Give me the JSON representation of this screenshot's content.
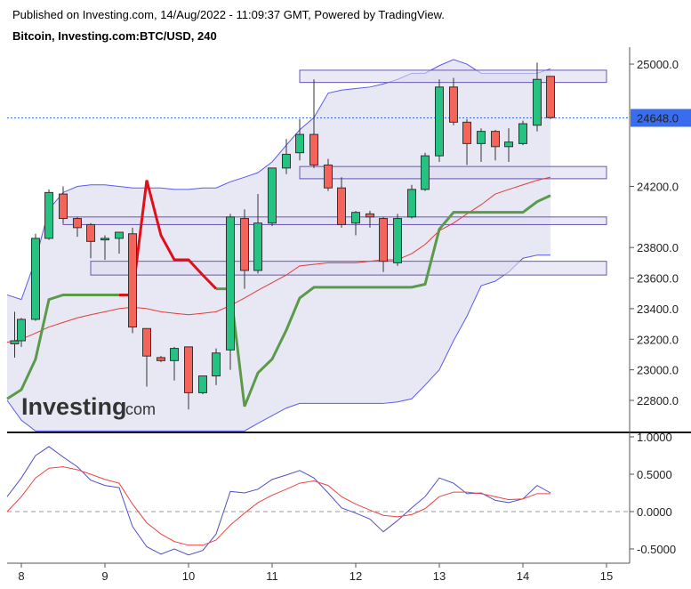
{
  "header": {
    "published": "Published on Investing.com, 14/Aug/2022 - 11:09:37 GMT, Powered by TradingView.",
    "symbol": "Bitcoin, Investing.com:BTC/USD, 240"
  },
  "logo": {
    "main": "Investing",
    "suffix": ".com"
  },
  "colors": {
    "up": "#26c281",
    "down": "#f5645a",
    "outline": "#333333",
    "band_fill": "#e4e4f2",
    "band_line": "#5a5aee",
    "zone_fill": "#dcdcf0",
    "zone_line": "#6a55b0",
    "ma_red": "#e33b3b",
    "ma_green": "#5a9a4a",
    "ma_hl_red": "#e0101a",
    "price_line": "#3a6cf0",
    "osc_blue": "#5050c8",
    "osc_red": "#ee4444"
  },
  "chart_data": [
    {
      "type": "candlestick",
      "title": "Bitcoin, Investing.com:BTC/USD, 240",
      "x_ticks": [
        "8",
        "9",
        "10",
        "11",
        "12",
        "13",
        "14",
        "15"
      ],
      "ylim": [
        22600,
        25100
      ],
      "y_ticks": [
        "22800.0",
        "23000.0",
        "23200.0",
        "23400.0",
        "23600.0",
        "23800.0",
        "24200.0",
        "25000.0"
      ],
      "last_price": "24648.0",
      "candles": [
        {
          "x": 7.92,
          "o": 23170,
          "h": 23380,
          "l": 23080,
          "c": 23190
        },
        {
          "x": 8.0,
          "o": 23190,
          "h": 23340,
          "l": 23150,
          "c": 23330
        },
        {
          "x": 8.17,
          "o": 23330,
          "h": 23890,
          "l": 23320,
          "c": 23860
        },
        {
          "x": 8.33,
          "o": 23860,
          "h": 24180,
          "l": 23850,
          "c": 24160
        },
        {
          "x": 8.5,
          "o": 24150,
          "h": 24200,
          "l": 23960,
          "c": 23990
        },
        {
          "x": 8.67,
          "o": 23990,
          "h": 24000,
          "l": 23870,
          "c": 23930
        },
        {
          "x": 8.83,
          "o": 23950,
          "h": 23960,
          "l": 23730,
          "c": 23840
        },
        {
          "x": 9.0,
          "o": 23850,
          "h": 23880,
          "l": 23720,
          "c": 23860
        },
        {
          "x": 9.17,
          "o": 23860,
          "h": 23900,
          "l": 23760,
          "c": 23900
        },
        {
          "x": 9.33,
          "o": 23890,
          "h": 23930,
          "l": 23240,
          "c": 23280
        },
        {
          "x": 9.5,
          "o": 23270,
          "h": 23270,
          "l": 22890,
          "c": 23090
        },
        {
          "x": 9.67,
          "o": 23080,
          "h": 23090,
          "l": 23050,
          "c": 23060
        },
        {
          "x": 9.83,
          "o": 23060,
          "h": 23150,
          "l": 22930,
          "c": 23140
        },
        {
          "x": 10.0,
          "o": 23150,
          "h": 23150,
          "l": 22740,
          "c": 22850
        },
        {
          "x": 10.17,
          "o": 22850,
          "h": 22960,
          "l": 22840,
          "c": 22960
        },
        {
          "x": 10.33,
          "o": 22960,
          "h": 23140,
          "l": 22900,
          "c": 23110
        },
        {
          "x": 10.5,
          "o": 23130,
          "h": 24020,
          "l": 23000,
          "c": 24000
        },
        {
          "x": 10.67,
          "o": 23990,
          "h": 24050,
          "l": 23530,
          "c": 23650
        },
        {
          "x": 10.83,
          "o": 23650,
          "h": 24150,
          "l": 23630,
          "c": 23960
        },
        {
          "x": 11.0,
          "o": 23960,
          "h": 24320,
          "l": 23940,
          "c": 24320
        },
        {
          "x": 11.17,
          "o": 24320,
          "h": 24510,
          "l": 24280,
          "c": 24410
        },
        {
          "x": 11.33,
          "o": 24420,
          "h": 24640,
          "l": 24370,
          "c": 24540
        },
        {
          "x": 11.5,
          "o": 24540,
          "h": 24900,
          "l": 24320,
          "c": 24340
        },
        {
          "x": 11.67,
          "o": 24340,
          "h": 24380,
          "l": 24170,
          "c": 24190
        },
        {
          "x": 11.83,
          "o": 24190,
          "h": 24260,
          "l": 23930,
          "c": 23950
        },
        {
          "x": 12.0,
          "o": 23960,
          "h": 24040,
          "l": 23880,
          "c": 24030
        },
        {
          "x": 12.17,
          "o": 24020,
          "h": 24040,
          "l": 23930,
          "c": 24000
        },
        {
          "x": 12.33,
          "o": 23990,
          "h": 24000,
          "l": 23640,
          "c": 23710
        },
        {
          "x": 12.5,
          "o": 23700,
          "h": 24020,
          "l": 23680,
          "c": 23990
        },
        {
          "x": 12.67,
          "o": 24000,
          "h": 24210,
          "l": 23990,
          "c": 24180
        },
        {
          "x": 12.83,
          "o": 24180,
          "h": 24420,
          "l": 24170,
          "c": 24400
        },
        {
          "x": 13.0,
          "o": 24400,
          "h": 24900,
          "l": 24360,
          "c": 24850
        },
        {
          "x": 13.17,
          "o": 24850,
          "h": 24910,
          "l": 24600,
          "c": 24620
        },
        {
          "x": 13.33,
          "o": 24620,
          "h": 24640,
          "l": 24340,
          "c": 24480
        },
        {
          "x": 13.5,
          "o": 24480,
          "h": 24580,
          "l": 24360,
          "c": 24560
        },
        {
          "x": 13.67,
          "o": 24560,
          "h": 24570,
          "l": 24370,
          "c": 24460
        },
        {
          "x": 13.83,
          "o": 24460,
          "h": 24580,
          "l": 24360,
          "c": 24490
        },
        {
          "x": 14.0,
          "o": 24480,
          "h": 24630,
          "l": 24470,
          "c": 24610
        },
        {
          "x": 14.17,
          "o": 24600,
          "h": 25010,
          "l": 24560,
          "c": 24900
        },
        {
          "x": 14.33,
          "o": 24920,
          "h": 24920,
          "l": 24640,
          "c": 24650
        }
      ],
      "zones": [
        {
          "from": 24880,
          "to": 24960,
          "x0": 11.33,
          "x1": 15.0
        },
        {
          "from": 24250,
          "to": 24330,
          "x0": 11.33,
          "x1": 15.0
        },
        {
          "from": 23950,
          "to": 24000,
          "x0": 8.5,
          "x1": 15.0
        },
        {
          "from": 23620,
          "to": 23710,
          "x0": 8.83,
          "x1": 15.0
        }
      ],
      "band": {
        "x": [
          7.83,
          8.0,
          8.17,
          8.33,
          8.5,
          8.67,
          8.83,
          9.0,
          9.17,
          9.33,
          9.5,
          9.67,
          9.83,
          10.0,
          10.17,
          10.33,
          10.5,
          10.67,
          10.83,
          11.0,
          11.17,
          11.33,
          11.5,
          11.67,
          11.83,
          12.0,
          12.17,
          12.33,
          12.5,
          12.67,
          12.83,
          13.0,
          13.17,
          13.33,
          13.5,
          13.67,
          13.83,
          14.0,
          14.17,
          14.33
        ],
        "upper": [
          23490,
          23460,
          23720,
          24050,
          24160,
          24200,
          24210,
          24210,
          24200,
          24190,
          24190,
          24190,
          24180,
          24180,
          24190,
          24190,
          24230,
          24260,
          24290,
          24360,
          24470,
          24570,
          24650,
          24810,
          24830,
          24840,
          24850,
          24870,
          24900,
          24940,
          24940,
          24990,
          25030,
          25000,
          24940,
          24940,
          24940,
          24940,
          24940,
          24970
        ],
        "lower": [
          22800,
          22670,
          22600,
          22600,
          22600,
          22600,
          22600,
          22600,
          22600,
          22600,
          22600,
          22600,
          22600,
          22600,
          22600,
          22600,
          22600,
          22600,
          22650,
          22700,
          22750,
          22780,
          22780,
          22780,
          22780,
          22780,
          22780,
          22780,
          22790,
          22810,
          22900,
          23000,
          23190,
          23350,
          23550,
          23580,
          23640,
          23730,
          23750,
          23750
        ]
      },
      "ma_red": {
        "x": [
          7.83,
          8.0,
          8.17,
          8.33,
          8.5,
          8.67,
          8.83,
          9.0,
          9.17,
          9.33,
          9.5,
          9.67,
          9.83,
          10.0,
          10.17,
          10.33,
          10.5,
          10.67,
          10.83,
          11.0,
          11.17,
          11.33,
          11.5,
          11.67,
          11.83,
          12.0,
          12.17,
          12.33,
          12.5,
          12.67,
          12.83,
          13.0,
          13.17,
          13.33,
          13.5,
          13.67,
          13.83,
          14.0,
          14.17,
          14.33
        ],
        "y": [
          23180,
          23200,
          23240,
          23280,
          23310,
          23340,
          23360,
          23380,
          23400,
          23410,
          23400,
          23380,
          23370,
          23360,
          23370,
          23380,
          23420,
          23470,
          23520,
          23570,
          23620,
          23680,
          23690,
          23700,
          23700,
          23700,
          23710,
          23720,
          23720,
          23760,
          23820,
          23910,
          23960,
          24020,
          24080,
          24150,
          24180,
          24210,
          24240,
          24260
        ]
      },
      "ma_green": {
        "x": [
          7.83,
          8.0,
          8.17,
          8.33,
          8.5,
          8.67,
          8.83,
          9.0,
          9.17,
          9.33,
          9.5,
          9.67,
          9.83,
          10.0,
          10.17,
          10.33,
          10.5,
          10.67,
          10.83,
          11.0,
          11.17,
          11.33,
          11.5,
          11.67,
          11.83,
          12.0,
          12.17,
          12.33,
          12.5,
          12.67,
          12.83,
          13.0,
          13.17,
          13.33,
          13.5,
          13.67,
          13.83,
          14.0,
          14.17,
          14.33
        ],
        "y": [
          22810,
          22870,
          23070,
          23460,
          23490,
          23490,
          23490,
          23490,
          23490,
          23490,
          24240,
          23880,
          23720,
          23720,
          23620,
          23530,
          23530,
          22760,
          22980,
          23070,
          23260,
          23470,
          23540,
          23540,
          23540,
          23540,
          23540,
          23540,
          23540,
          23540,
          23560,
          23920,
          24030,
          24030,
          24030,
          24030,
          24030,
          24030,
          24100,
          24140
        ]
      },
      "ma_highlight_segment": {
        "from_x": 9.17,
        "to_x": 10.33
      }
    },
    {
      "type": "line",
      "title": "",
      "ylim": [
        -0.62,
        1.0
      ],
      "y_ticks": [
        "1.0000",
        "0.5000",
        "0.0000",
        "-0.5000"
      ],
      "zero_line": true,
      "series": [
        {
          "x": [
            7.83,
            8.0,
            8.17,
            8.33,
            8.5,
            8.67,
            8.83,
            9.0,
            9.17,
            9.33,
            9.5,
            9.67,
            9.83,
            10.0,
            10.17,
            10.33,
            10.5,
            10.67,
            10.83,
            11.0,
            11.17,
            11.33,
            11.5,
            11.67,
            11.83,
            12.0,
            12.17,
            12.33,
            12.5,
            12.67,
            12.83,
            13.0,
            13.17,
            13.33,
            13.5,
            13.67,
            13.83,
            14.0,
            14.17,
            14.33
          ],
          "values": [
            0.2,
            0.45,
            0.75,
            0.87,
            0.73,
            0.6,
            0.42,
            0.35,
            0.32,
            -0.2,
            -0.47,
            -0.57,
            -0.5,
            -0.58,
            -0.52,
            -0.3,
            0.27,
            0.25,
            0.3,
            0.43,
            0.49,
            0.55,
            0.45,
            0.25,
            0.05,
            -0.02,
            -0.1,
            -0.27,
            -0.12,
            0.05,
            0.2,
            0.45,
            0.38,
            0.24,
            0.25,
            0.15,
            0.12,
            0.17,
            0.35,
            0.25
          ]
        },
        {
          "x": [
            7.83,
            8.0,
            8.17,
            8.33,
            8.5,
            8.67,
            8.83,
            9.0,
            9.17,
            9.33,
            9.5,
            9.67,
            9.83,
            10.0,
            10.17,
            10.33,
            10.5,
            10.67,
            10.83,
            11.0,
            11.17,
            11.33,
            11.5,
            11.67,
            11.83,
            12.0,
            12.17,
            12.33,
            12.5,
            12.67,
            12.83,
            13.0,
            13.17,
            13.33,
            13.5,
            13.67,
            13.83,
            14.0,
            14.17,
            14.33
          ],
          "values": [
            0.0,
            0.2,
            0.45,
            0.58,
            0.6,
            0.56,
            0.5,
            0.43,
            0.38,
            0.1,
            -0.15,
            -0.3,
            -0.4,
            -0.45,
            -0.45,
            -0.38,
            -0.18,
            -0.02,
            0.12,
            0.22,
            0.3,
            0.38,
            0.41,
            0.35,
            0.2,
            0.1,
            0.02,
            -0.05,
            -0.07,
            -0.04,
            0.04,
            0.2,
            0.26,
            0.26,
            0.24,
            0.2,
            0.16,
            0.17,
            0.24,
            0.24
          ]
        }
      ]
    }
  ]
}
